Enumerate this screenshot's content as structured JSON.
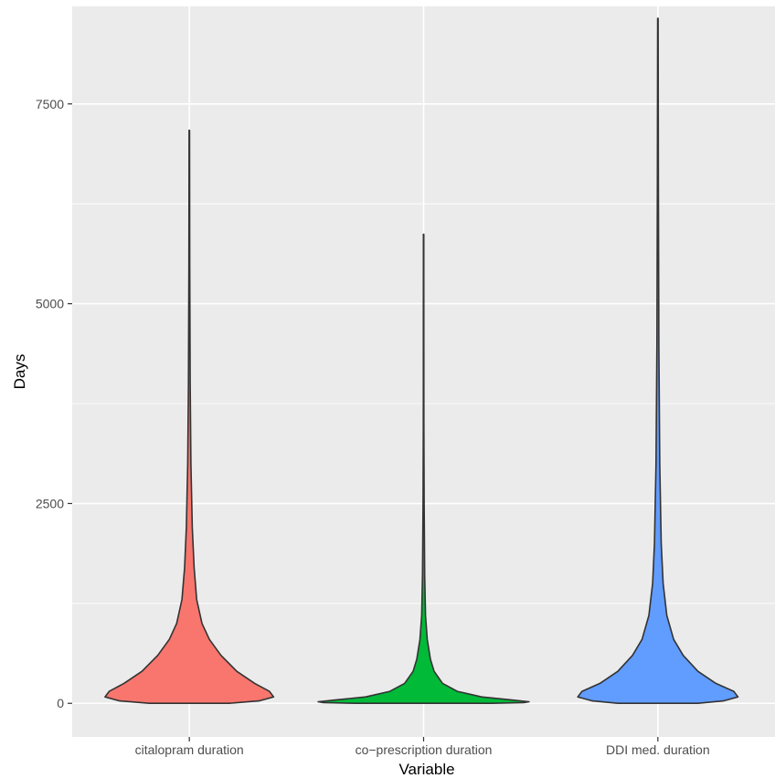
{
  "chart_data": {
    "type": "violin",
    "title": "",
    "xlabel": "Variable",
    "ylabel": "Days",
    "ylim": [
      -420,
      8720
    ],
    "y_ticks": [
      0,
      2500,
      5000,
      7500
    ],
    "y_tick_labels": [
      "0",
      "2500",
      "5000",
      "7500"
    ],
    "grid": true,
    "legend": "none",
    "categories": [
      "citalopram duration",
      "co−prescription duration",
      "DDI med. duration"
    ],
    "series": [
      {
        "category": "citalopram duration",
        "color": "#F8766D",
        "min": 0,
        "max": 7170,
        "density": [
          [
            0,
            0.38
          ],
          [
            30,
            0.66
          ],
          [
            80,
            0.8
          ],
          [
            150,
            0.76
          ],
          [
            250,
            0.62
          ],
          [
            400,
            0.45
          ],
          [
            600,
            0.3
          ],
          [
            800,
            0.19
          ],
          [
            1000,
            0.12
          ],
          [
            1300,
            0.07
          ],
          [
            1700,
            0.045
          ],
          [
            2200,
            0.028
          ],
          [
            3000,
            0.015
          ],
          [
            4000,
            0.008
          ],
          [
            5500,
            0.004
          ],
          [
            7170,
            0.002
          ]
        ]
      },
      {
        "category": "co−prescription duration",
        "color": "#00BA38",
        "min": 0,
        "max": 5870,
        "density": [
          [
            0,
            0.65
          ],
          [
            10,
            0.95
          ],
          [
            20,
            1.0
          ],
          [
            40,
            0.85
          ],
          [
            80,
            0.55
          ],
          [
            150,
            0.32
          ],
          [
            250,
            0.18
          ],
          [
            400,
            0.1
          ],
          [
            550,
            0.065
          ],
          [
            800,
            0.035
          ],
          [
            1100,
            0.018
          ],
          [
            1600,
            0.01
          ],
          [
            2500,
            0.005
          ],
          [
            3500,
            0.003
          ],
          [
            5870,
            0.002
          ]
        ]
      },
      {
        "category": "DDI med. duration",
        "color": "#619CFF",
        "min": 0,
        "max": 8570,
        "density": [
          [
            0,
            0.38
          ],
          [
            30,
            0.62
          ],
          [
            80,
            0.76
          ],
          [
            150,
            0.72
          ],
          [
            250,
            0.55
          ],
          [
            400,
            0.38
          ],
          [
            600,
            0.24
          ],
          [
            800,
            0.15
          ],
          [
            1100,
            0.085
          ],
          [
            1500,
            0.05
          ],
          [
            2000,
            0.032
          ],
          [
            3000,
            0.018
          ],
          [
            4500,
            0.009
          ],
          [
            6500,
            0.005
          ],
          [
            8570,
            0.002
          ]
        ]
      }
    ]
  }
}
